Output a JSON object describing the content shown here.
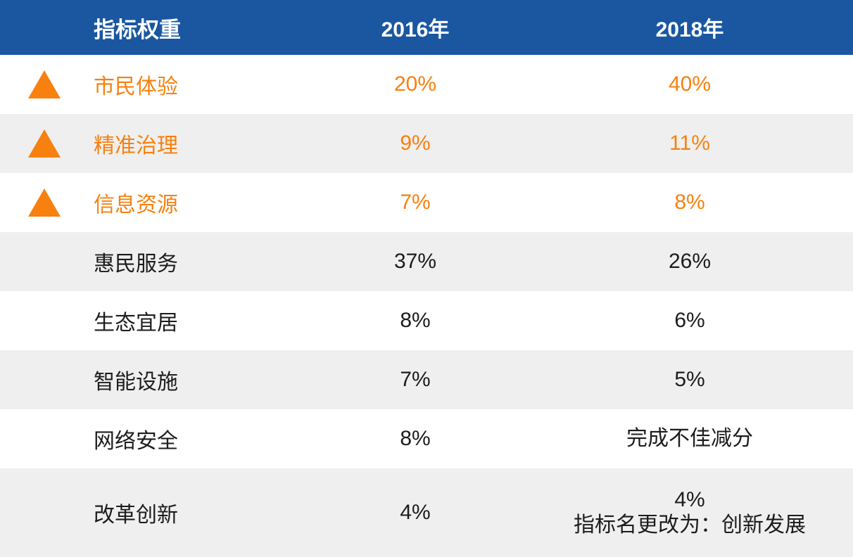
{
  "colors": {
    "header_bg": "#1a57a0",
    "header_text": "#ffffff",
    "highlight_orange": "#f8800e",
    "shaded_row_bg": "#efefef",
    "body_text": "#1c1c1c"
  },
  "table": {
    "header": {
      "col1": "指标权重",
      "col2": "2016年",
      "col3": "2018年"
    },
    "rows": [
      {
        "label": "市民体验",
        "y2016": "20%",
        "y2018": "40%",
        "highlighted": true
      },
      {
        "label": "精准治理",
        "y2016": "9%",
        "y2018": "11%",
        "highlighted": true
      },
      {
        "label": "信息资源",
        "y2016": "7%",
        "y2018": "8%",
        "highlighted": true
      },
      {
        "label": "惠民服务",
        "y2016": "37%",
        "y2018": "26%",
        "highlighted": false
      },
      {
        "label": "生态宜居",
        "y2016": "8%",
        "y2018": "6%",
        "highlighted": false
      },
      {
        "label": "智能设施",
        "y2016": "7%",
        "y2018": "5%",
        "highlighted": false
      },
      {
        "label": "网络安全",
        "y2016": "8%",
        "y2018": "完成不佳减分",
        "highlighted": false
      },
      {
        "label": "改革创新",
        "y2016": "4%",
        "y2018": "4%",
        "note2018": "指标名更改为：创新发展",
        "highlighted": false
      }
    ]
  },
  "chart_data": {
    "type": "table",
    "title": "指标权重",
    "columns": [
      "指标权重",
      "2016年",
      "2018年"
    ],
    "rows": [
      [
        "市民体验",
        "20%",
        "40%"
      ],
      [
        "精准治理",
        "9%",
        "11%"
      ],
      [
        "信息资源",
        "7%",
        "8%"
      ],
      [
        "惠民服务",
        "37%",
        "26%"
      ],
      [
        "生态宜居",
        "8%",
        "6%"
      ],
      [
        "智能设施",
        "7%",
        "5%"
      ],
      [
        "网络安全",
        "8%",
        "完成不佳减分"
      ],
      [
        "改革创新",
        "4%",
        "4% 指标名更改为：创新发展"
      ]
    ],
    "notes": "前三行（市民体验、精准治理、信息资源）以橙色及上三角标记，表示权重上升",
    "legend_position": "none",
    "grid": "off"
  }
}
